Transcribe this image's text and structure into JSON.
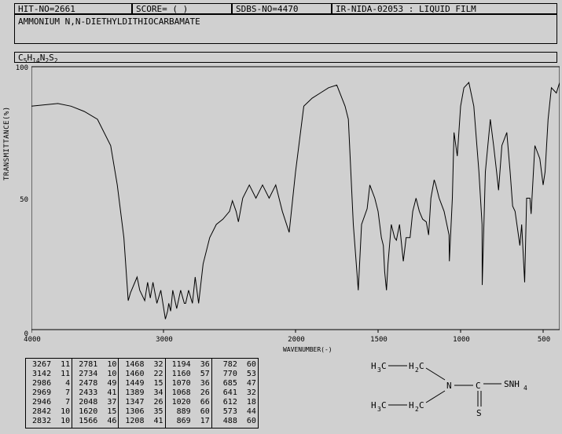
{
  "header": {
    "hit_no": "HIT-NO=2661",
    "score": "SCORE=  ( )",
    "sdbs_no": "SDBS-NO=4470",
    "ir_info": "IR-NIDA-02053 : LIQUID FILM"
  },
  "compound_name": "AMMONIUM N,N-DIETHYLDITHIOCARBAMATE",
  "formula_html": "C<sub>5</sub>H<sub>14</sub>N<sub>2</sub>S<sub>2</sub>",
  "chart": {
    "type": "line",
    "xlabel": "WAVENUMBER(-)",
    "ylabel": "TRANSMITTANCE(%)",
    "xlim": [
      4000,
      400
    ],
    "ylim": [
      0,
      100
    ],
    "xticks": [
      4000,
      3000,
      2000,
      1500,
      1000,
      500
    ],
    "yticks": [
      0,
      50,
      100
    ],
    "background_color": "#d0d0d0",
    "line_color": "#000000",
    "line_width": 1,
    "grid": false,
    "spectrum": [
      [
        4000,
        85
      ],
      [
        3800,
        86
      ],
      [
        3700,
        85
      ],
      [
        3600,
        83
      ],
      [
        3500,
        80
      ],
      [
        3400,
        70
      ],
      [
        3350,
        55
      ],
      [
        3300,
        35
      ],
      [
        3267,
        11
      ],
      [
        3250,
        14
      ],
      [
        3200,
        20
      ],
      [
        3180,
        15
      ],
      [
        3142,
        11
      ],
      [
        3120,
        18
      ],
      [
        3100,
        12
      ],
      [
        3080,
        18
      ],
      [
        3050,
        10
      ],
      [
        3020,
        15
      ],
      [
        2986,
        4
      ],
      [
        2969,
        7
      ],
      [
        2960,
        10
      ],
      [
        2946,
        7
      ],
      [
        2930,
        15
      ],
      [
        2900,
        8
      ],
      [
        2870,
        15
      ],
      [
        2842,
        10
      ],
      [
        2832,
        10
      ],
      [
        2810,
        15
      ],
      [
        2781,
        10
      ],
      [
        2760,
        20
      ],
      [
        2734,
        10
      ],
      [
        2700,
        25
      ],
      [
        2650,
        35
      ],
      [
        2600,
        40
      ],
      [
        2550,
        42
      ],
      [
        2500,
        45
      ],
      [
        2478,
        49
      ],
      [
        2450,
        45
      ],
      [
        2433,
        41
      ],
      [
        2400,
        50
      ],
      [
        2350,
        55
      ],
      [
        2300,
        50
      ],
      [
        2250,
        55
      ],
      [
        2200,
        50
      ],
      [
        2150,
        55
      ],
      [
        2100,
        45
      ],
      [
        2048,
        37
      ],
      [
        2000,
        60
      ],
      [
        1950,
        85
      ],
      [
        1900,
        88
      ],
      [
        1850,
        90
      ],
      [
        1800,
        92
      ],
      [
        1750,
        93
      ],
      [
        1700,
        85
      ],
      [
        1680,
        80
      ],
      [
        1650,
        40
      ],
      [
        1620,
        15
      ],
      [
        1600,
        40
      ],
      [
        1566,
        46
      ],
      [
        1550,
        55
      ],
      [
        1520,
        50
      ],
      [
        1500,
        45
      ],
      [
        1480,
        35
      ],
      [
        1468,
        32
      ],
      [
        1460,
        22
      ],
      [
        1449,
        15
      ],
      [
        1440,
        25
      ],
      [
        1420,
        40
      ],
      [
        1400,
        35
      ],
      [
        1389,
        34
      ],
      [
        1370,
        40
      ],
      [
        1347,
        26
      ],
      [
        1330,
        35
      ],
      [
        1306,
        35
      ],
      [
        1290,
        45
      ],
      [
        1270,
        50
      ],
      [
        1250,
        45
      ],
      [
        1230,
        42
      ],
      [
        1208,
        41
      ],
      [
        1194,
        36
      ],
      [
        1180,
        50
      ],
      [
        1160,
        57
      ],
      [
        1150,
        55
      ],
      [
        1130,
        50
      ],
      [
        1100,
        45
      ],
      [
        1070,
        36
      ],
      [
        1068,
        26
      ],
      [
        1050,
        50
      ],
      [
        1040,
        75
      ],
      [
        1020,
        66
      ],
      [
        1000,
        85
      ],
      [
        980,
        92
      ],
      [
        950,
        94
      ],
      [
        920,
        85
      ],
      [
        889,
        60
      ],
      [
        870,
        40
      ],
      [
        869,
        17
      ],
      [
        850,
        60
      ],
      [
        820,
        80
      ],
      [
        800,
        70
      ],
      [
        782,
        60
      ],
      [
        770,
        53
      ],
      [
        750,
        70
      ],
      [
        720,
        75
      ],
      [
        700,
        60
      ],
      [
        685,
        47
      ],
      [
        670,
        45
      ],
      [
        641,
        32
      ],
      [
        630,
        40
      ],
      [
        612,
        18
      ],
      [
        600,
        50
      ],
      [
        580,
        50
      ],
      [
        573,
        44
      ],
      [
        550,
        70
      ],
      [
        520,
        65
      ],
      [
        500,
        55
      ],
      [
        488,
        60
      ],
      [
        470,
        80
      ],
      [
        450,
        92
      ],
      [
        420,
        90
      ],
      [
        400,
        94
      ]
    ]
  },
  "peak_table": {
    "columns": [
      [
        [
          "3267",
          11
        ],
        [
          "3142",
          11
        ],
        [
          "2986",
          4
        ],
        [
          "2969",
          7
        ],
        [
          "2946",
          7
        ],
        [
          "2842",
          10
        ],
        [
          "2832",
          10
        ]
      ],
      [
        [
          "2781",
          10
        ],
        [
          "2734",
          10
        ],
        [
          "2478",
          49
        ],
        [
          "2433",
          41
        ],
        [
          "2048",
          37
        ],
        [
          "1620",
          15
        ],
        [
          "1566",
          46
        ]
      ],
      [
        [
          "1468",
          32
        ],
        [
          "1460",
          22
        ],
        [
          "1449",
          15
        ],
        [
          "1389",
          34
        ],
        [
          "1347",
          26
        ],
        [
          "1306",
          35
        ],
        [
          "1208",
          41
        ]
      ],
      [
        [
          "1194",
          36
        ],
        [
          "1160",
          57
        ],
        [
          "1070",
          36
        ],
        [
          "1068",
          26
        ],
        [
          "1020",
          66
        ],
        [
          "889",
          60
        ],
        [
          "869",
          17
        ]
      ],
      [
        [
          "782",
          60
        ],
        [
          "770",
          53
        ],
        [
          "685",
          47
        ],
        [
          "641",
          32
        ],
        [
          "612",
          18
        ],
        [
          "573",
          44
        ],
        [
          "488",
          60
        ]
      ]
    ]
  },
  "structure": {
    "atoms": [
      "H3C",
      "H2C",
      "H3C",
      "H2C",
      "N",
      "C",
      "SNH4",
      "S"
    ],
    "description": "diethyl amine dithiocarbamate ammonium salt"
  },
  "colors": {
    "background": "#d0d0d0",
    "border": "#000000",
    "text": "#000000"
  }
}
